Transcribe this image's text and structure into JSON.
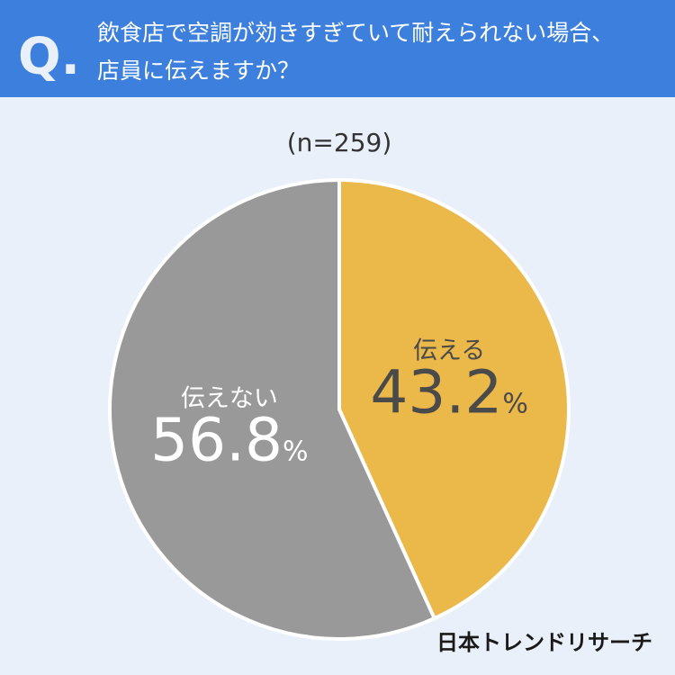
{
  "chart_data": {
    "type": "pie",
    "q_mark": "Q.",
    "title": [
      "飲食店で空調が効きすぎていて耐えられない場合、",
      "店員に伝えますか？"
    ],
    "subtitle": "(n=259)",
    "categories": [
      "伝える",
      "伝えない"
    ],
    "values": [
      43.2,
      56.8
    ],
    "value_labels": [
      "43.2%",
      "56.8%"
    ],
    "colors": [
      "#ebb84a",
      "#999999"
    ],
    "label_colors": [
      "#4a4a4a",
      "#ffffff"
    ],
    "source": "日本トレンドリサーチ"
  }
}
